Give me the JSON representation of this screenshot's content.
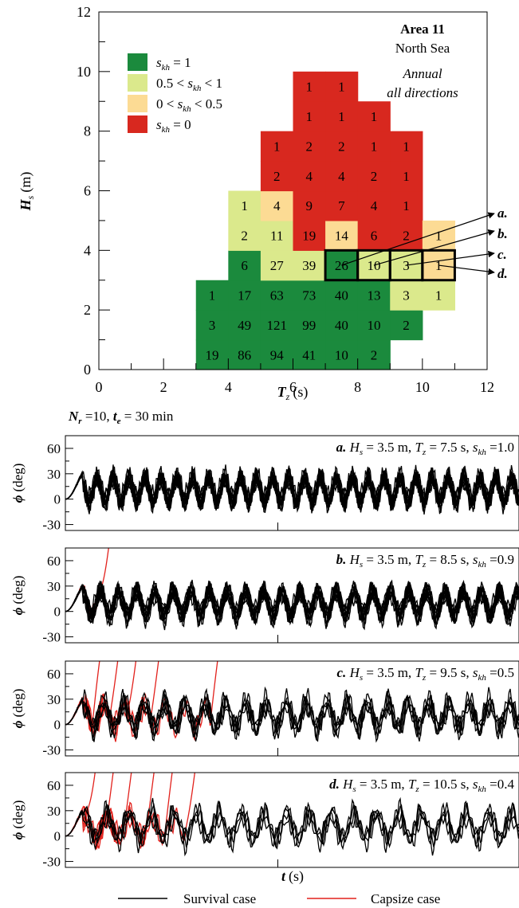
{
  "colors": {
    "green": "#1b8a3d",
    "light_green": "#dbe98c",
    "light_orange": "#fcdb94",
    "red": "#d8281f",
    "survival": "#000000",
    "capsize": "#e2211c"
  },
  "chart_data": [
    {
      "type": "heatmap",
      "title": "Area 11",
      "subtitle": "North Sea",
      "annotation": [
        "Annual",
        "all directions"
      ],
      "xlabel": "T",
      "xlabel_sub": "z",
      "xlabel_unit": "(s)",
      "ylabel": "H",
      "ylabel_sub": "s",
      "ylabel_unit": "(m)",
      "xlim": [
        0,
        12
      ],
      "ylim": [
        0,
        12
      ],
      "xticks": [
        0,
        2,
        4,
        6,
        8,
        10,
        12
      ],
      "yticks": [
        0,
        2,
        4,
        6,
        8,
        10,
        12
      ],
      "legend": {
        "placement": "top-left",
        "items": [
          {
            "label": "s_kh = 1",
            "color": "green"
          },
          {
            "label": "0.5 < s_kh < 1",
            "color": "light_green"
          },
          {
            "label": "0 < s_kh < 0.5",
            "color": "light_orange"
          },
          {
            "label": "s_kh = 0",
            "color": "red"
          }
        ]
      },
      "cells": [
        {
          "tz": 3.5,
          "hs": 0.5,
          "count": "19",
          "cat": "green"
        },
        {
          "tz": 3.5,
          "hs": 1.5,
          "count": "3",
          "cat": "green"
        },
        {
          "tz": 3.5,
          "hs": 2.5,
          "count": "1",
          "cat": "green"
        },
        {
          "tz": 4.5,
          "hs": 0.5,
          "count": "86",
          "cat": "green"
        },
        {
          "tz": 4.5,
          "hs": 1.5,
          "count": "49",
          "cat": "green"
        },
        {
          "tz": 4.5,
          "hs": 2.5,
          "count": "17",
          "cat": "green"
        },
        {
          "tz": 4.5,
          "hs": 3.5,
          "count": "6",
          "cat": "green"
        },
        {
          "tz": 4.5,
          "hs": 4.5,
          "count": "2",
          "cat": "light_green"
        },
        {
          "tz": 4.5,
          "hs": 5.5,
          "count": "1",
          "cat": "light_green"
        },
        {
          "tz": 5.5,
          "hs": 0.5,
          "count": "94",
          "cat": "green"
        },
        {
          "tz": 5.5,
          "hs": 1.5,
          "count": "121",
          "cat": "green"
        },
        {
          "tz": 5.5,
          "hs": 2.5,
          "count": "63",
          "cat": "green"
        },
        {
          "tz": 5.5,
          "hs": 3.5,
          "count": "27",
          "cat": "light_green"
        },
        {
          "tz": 5.5,
          "hs": 4.5,
          "count": "11",
          "cat": "light_green"
        },
        {
          "tz": 5.5,
          "hs": 5.5,
          "count": "4",
          "cat": "light_orange"
        },
        {
          "tz": 5.5,
          "hs": 6.5,
          "count": "2",
          "cat": "red"
        },
        {
          "tz": 5.5,
          "hs": 7.5,
          "count": "1",
          "cat": "red"
        },
        {
          "tz": 6.5,
          "hs": 0.5,
          "count": "41",
          "cat": "green"
        },
        {
          "tz": 6.5,
          "hs": 1.5,
          "count": "99",
          "cat": "green"
        },
        {
          "tz": 6.5,
          "hs": 2.5,
          "count": "73",
          "cat": "green"
        },
        {
          "tz": 6.5,
          "hs": 3.5,
          "count": "39",
          "cat": "light_green"
        },
        {
          "tz": 6.5,
          "hs": 4.5,
          "count": "19",
          "cat": "red"
        },
        {
          "tz": 6.5,
          "hs": 5.5,
          "count": "9",
          "cat": "red"
        },
        {
          "tz": 6.5,
          "hs": 6.5,
          "count": "4",
          "cat": "red"
        },
        {
          "tz": 6.5,
          "hs": 7.5,
          "count": "2",
          "cat": "red"
        },
        {
          "tz": 6.5,
          "hs": 8.5,
          "count": "1",
          "cat": "red"
        },
        {
          "tz": 6.5,
          "hs": 9.5,
          "count": "1",
          "cat": "red"
        },
        {
          "tz": 7.5,
          "hs": 0.5,
          "count": "10",
          "cat": "green"
        },
        {
          "tz": 7.5,
          "hs": 1.5,
          "count": "40",
          "cat": "green"
        },
        {
          "tz": 7.5,
          "hs": 2.5,
          "count": "40",
          "cat": "green"
        },
        {
          "tz": 7.5,
          "hs": 3.5,
          "count": "26",
          "cat": "green"
        },
        {
          "tz": 7.5,
          "hs": 4.5,
          "count": "14",
          "cat": "light_orange"
        },
        {
          "tz": 7.5,
          "hs": 5.5,
          "count": "7",
          "cat": "red"
        },
        {
          "tz": 7.5,
          "hs": 6.5,
          "count": "4",
          "cat": "red"
        },
        {
          "tz": 7.5,
          "hs": 7.5,
          "count": "2",
          "cat": "red"
        },
        {
          "tz": 7.5,
          "hs": 8.5,
          "count": "1",
          "cat": "red"
        },
        {
          "tz": 7.5,
          "hs": 9.5,
          "count": "1",
          "cat": "red"
        },
        {
          "tz": 8.5,
          "hs": 0.5,
          "count": "2",
          "cat": "green"
        },
        {
          "tz": 8.5,
          "hs": 1.5,
          "count": "10",
          "cat": "green"
        },
        {
          "tz": 8.5,
          "hs": 2.5,
          "count": "13",
          "cat": "green"
        },
        {
          "tz": 8.5,
          "hs": 3.5,
          "count": "10",
          "cat": "light_green"
        },
        {
          "tz": 8.5,
          "hs": 4.5,
          "count": "6",
          "cat": "red"
        },
        {
          "tz": 8.5,
          "hs": 5.5,
          "count": "4",
          "cat": "red"
        },
        {
          "tz": 8.5,
          "hs": 6.5,
          "count": "2",
          "cat": "red"
        },
        {
          "tz": 8.5,
          "hs": 7.5,
          "count": "1",
          "cat": "red"
        },
        {
          "tz": 8.5,
          "hs": 8.5,
          "count": "1",
          "cat": "red"
        },
        {
          "tz": 9.5,
          "hs": 1.5,
          "count": "2",
          "cat": "green"
        },
        {
          "tz": 9.5,
          "hs": 2.5,
          "count": "3",
          "cat": "light_green"
        },
        {
          "tz": 9.5,
          "hs": 3.5,
          "count": "3",
          "cat": "light_green"
        },
        {
          "tz": 9.5,
          "hs": 4.5,
          "count": "2",
          "cat": "red"
        },
        {
          "tz": 9.5,
          "hs": 5.5,
          "count": "1",
          "cat": "red"
        },
        {
          "tz": 9.5,
          "hs": 6.5,
          "count": "1",
          "cat": "red"
        },
        {
          "tz": 9.5,
          "hs": 7.5,
          "count": "1",
          "cat": "red"
        },
        {
          "tz": 10.5,
          "hs": 2.5,
          "count": "1",
          "cat": "light_green"
        },
        {
          "tz": 10.5,
          "hs": 3.5,
          "count": "1",
          "cat": "light_orange"
        },
        {
          "tz": 10.5,
          "hs": 4.5,
          "count": "1",
          "cat": "light_orange"
        }
      ],
      "highlighted": [
        {
          "label": "a",
          "tz": 7.5,
          "hs": 3.5
        },
        {
          "label": "b",
          "tz": 8.5,
          "hs": 3.5
        },
        {
          "label": "c",
          "tz": 9.5,
          "hs": 3.5
        },
        {
          "label": "d",
          "tz": 10.5,
          "hs": 3.5
        }
      ]
    },
    {
      "type": "line",
      "header": "N_r =10, t_e = 30 min",
      "xlabel": "t",
      "xlabel_unit": "(s)",
      "ylabel": "ϕ",
      "ylabel_unit": "(deg)",
      "ylim": [
        -37,
        75
      ],
      "yticks": [
        -30,
        0,
        30,
        60
      ],
      "legend": {
        "placement": "bottom",
        "items": [
          "Survival case",
          "Capsize case"
        ]
      },
      "panels": [
        {
          "label": "a",
          "hs": "3.5",
          "tz": "7.5",
          "skh": "1.0",
          "capsize_count": 0,
          "survival_count": 10,
          "capsize_times": []
        },
        {
          "label": "b",
          "hs": "3.5",
          "tz": "8.5",
          "skh": "0.9",
          "capsize_count": 1,
          "survival_count": 9,
          "capsize_times": [
            0.08
          ]
        },
        {
          "label": "c",
          "hs": "3.5",
          "tz": "9.5",
          "skh": "0.5",
          "capsize_count": 5,
          "survival_count": 5,
          "capsize_times": [
            0.06,
            0.1,
            0.14,
            0.19,
            0.32
          ]
        },
        {
          "label": "d",
          "hs": "3.5",
          "tz": "10.5",
          "skh": "0.4",
          "capsize_count": 6,
          "survival_count": 4,
          "capsize_times": [
            0.05,
            0.09,
            0.13,
            0.18,
            0.22,
            0.27
          ]
        }
      ]
    }
  ]
}
